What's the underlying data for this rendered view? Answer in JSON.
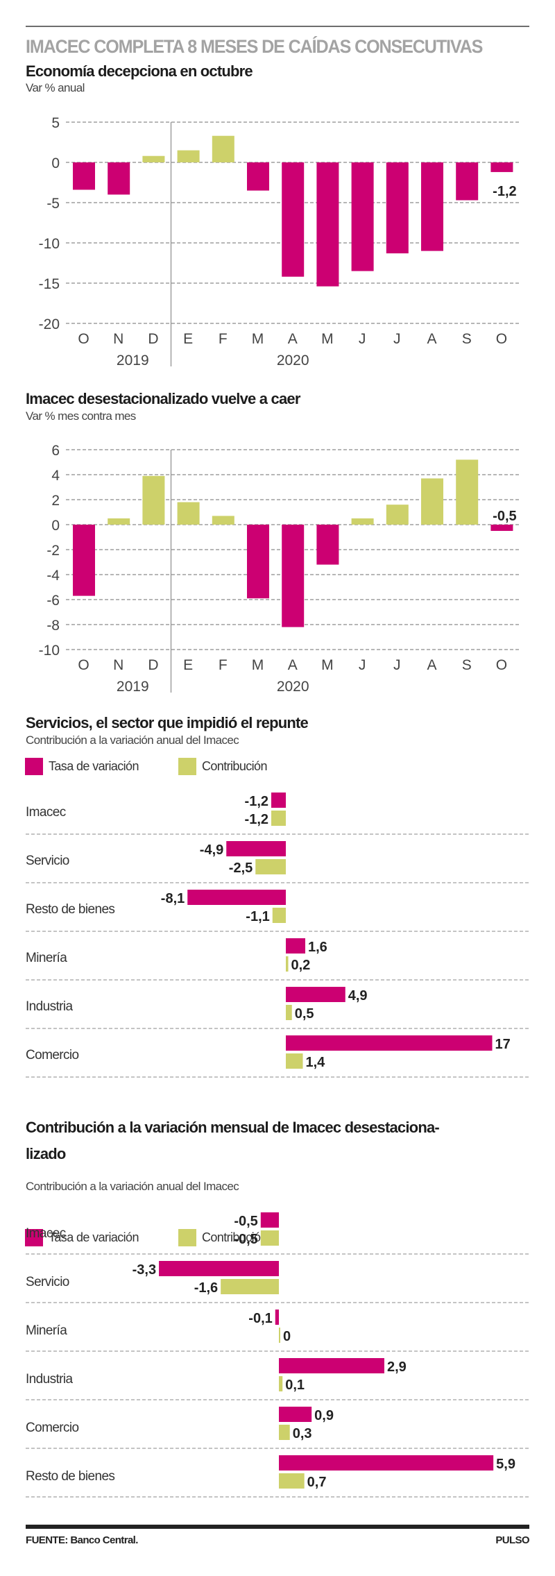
{
  "colors": {
    "negative": "#cc0072",
    "positive": "#cdd16a",
    "grid": "#9e9e9e",
    "text": "#222222"
  },
  "header": {
    "title": "IMACEC COMPLETA 8 MESES DE CAÍDAS CONSECUTIVAS"
  },
  "footer": {
    "source": "FUENTE: Banco Central.",
    "brand": "PULSO"
  },
  "legend": {
    "rate": "Tasa de variación",
    "contribution": "Contribución"
  },
  "chart_data": [
    {
      "type": "bar",
      "title": "Economía decepciona en octubre",
      "subtitle": "Var % anual",
      "categories": [
        "O",
        "N",
        "D",
        "E",
        "F",
        "M",
        "A",
        "M",
        "J",
        "J",
        "A",
        "S",
        "O"
      ],
      "years": [
        {
          "label": "2019",
          "from": 0,
          "to": 2
        },
        {
          "label": "2020",
          "from": 3,
          "to": 12
        }
      ],
      "values": [
        -3.4,
        -4.0,
        0.8,
        1.5,
        3.3,
        -3.5,
        -14.2,
        -15.4,
        -13.5,
        -11.3,
        -11.0,
        -4.7,
        -1.2
      ],
      "ylim": [
        -20,
        5
      ],
      "yticks": [
        5,
        0,
        -5,
        -10,
        -15,
        -20
      ],
      "ytick_labels": [
        "5",
        "0",
        "-5",
        "-10",
        "-15",
        "-20"
      ],
      "grid": true,
      "annotation": {
        "index": 12,
        "text": "-1,2"
      }
    },
    {
      "type": "bar",
      "title": "Imacec desestacionalizado vuelve a caer",
      "subtitle": "Var % mes contra mes",
      "categories": [
        "O",
        "N",
        "D",
        "E",
        "F",
        "M",
        "A",
        "M",
        "J",
        "J",
        "A",
        "S",
        "O"
      ],
      "years": [
        {
          "label": "2019",
          "from": 0,
          "to": 2
        },
        {
          "label": "2020",
          "from": 3,
          "to": 12
        }
      ],
      "values": [
        -5.7,
        0.5,
        3.9,
        1.8,
        0.7,
        -5.9,
        -8.2,
        -3.2,
        0.5,
        1.6,
        3.7,
        5.2,
        -0.5
      ],
      "ylim": [
        -10,
        6
      ],
      "yticks": [
        6,
        4,
        2,
        0,
        -2,
        -4,
        -6,
        -8,
        -10
      ],
      "ytick_labels": [
        "6",
        "4",
        "2",
        "0",
        "-2",
        "-4",
        "-6",
        "-8",
        "-10"
      ],
      "grid": true,
      "annotation": {
        "index": 12,
        "text": "-0,5"
      }
    },
    {
      "type": "bar",
      "orientation": "horizontal",
      "title": "Servicios, el sector que impidió el repunte",
      "subtitle": "Contribución a la variación anual del Imacec",
      "legend": [
        "Tasa de variación",
        "Contribución"
      ],
      "categories": [
        "Imacec",
        "Servicio",
        "Resto de bienes",
        "Minería",
        "Industria",
        "Comercio"
      ],
      "series": [
        {
          "name": "Tasa de variación",
          "values": [
            -1.2,
            -4.9,
            -8.1,
            1.6,
            4.9,
            17
          ],
          "labels": [
            "-1,2",
            "-4,9",
            "-8,1",
            "1,6",
            "4,9",
            "17"
          ]
        },
        {
          "name": "Contribución",
          "values": [
            -1.2,
            -2.5,
            -1.1,
            0.2,
            0.5,
            1.4
          ],
          "labels": [
            "-1,2",
            "-2,5",
            "-1,1",
            "0,2",
            "0,5",
            "1,4"
          ]
        }
      ]
    },
    {
      "type": "bar",
      "orientation": "horizontal",
      "title": "Contribución a la variación mensual de Imacec desestaciona-",
      "title_line2": "lizado",
      "subtitle": "Contribución a la variación anual del Imacec",
      "legend": [
        "Tasa de variación",
        "Contribución"
      ],
      "categories": [
        "Imacec",
        "Servicio",
        "Minería",
        "Industria",
        "Comercio",
        "Resto de bienes"
      ],
      "series": [
        {
          "name": "Tasa de variación",
          "values": [
            -0.5,
            -3.3,
            -0.1,
            2.9,
            0.9,
            5.9
          ],
          "labels": [
            "-0,5",
            "-3,3",
            "-0,1",
            "2,9",
            "0,9",
            "5,9"
          ]
        },
        {
          "name": "Contribución",
          "values": [
            -0.5,
            -1.6,
            0,
            0.1,
            0.3,
            0.7
          ],
          "labels": [
            "-0,5",
            "-1,6",
            "0",
            "0,1",
            "0,3",
            "0,7"
          ]
        }
      ]
    }
  ]
}
